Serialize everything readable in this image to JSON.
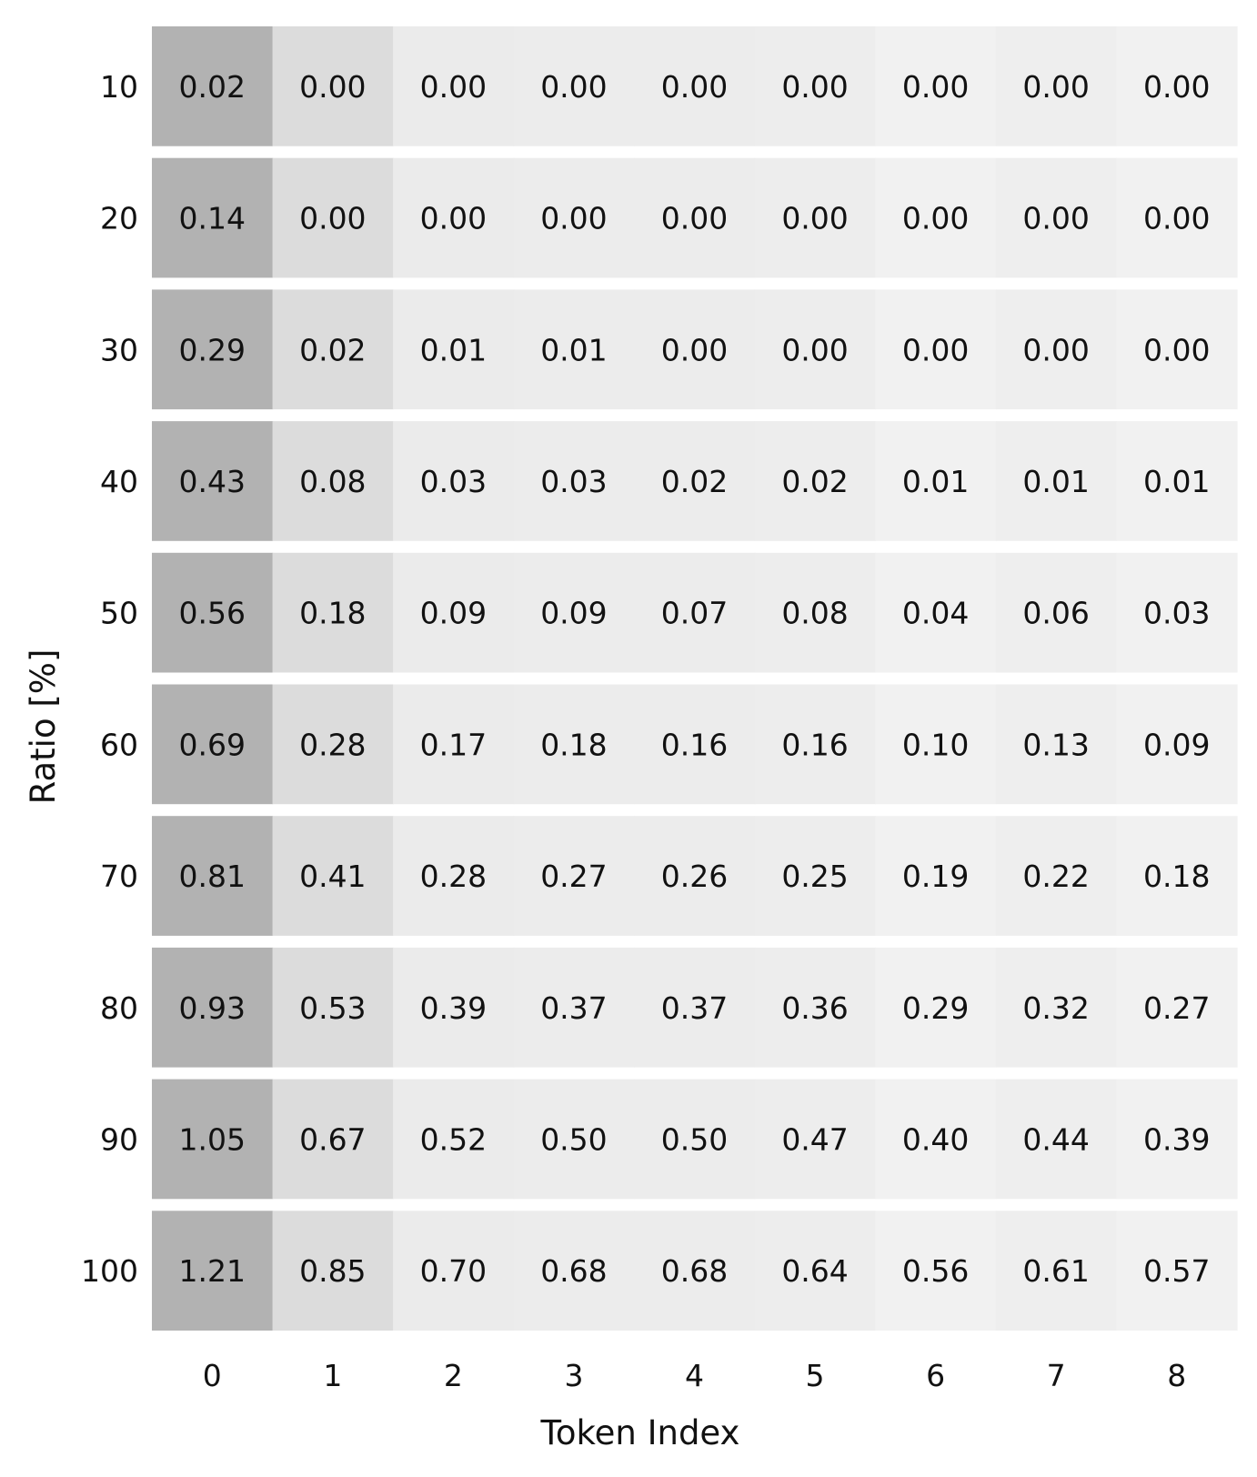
{
  "chart_data": {
    "type": "heatmap",
    "xlabel": "Token Index",
    "ylabel": "Ratio [%]",
    "x_categories": [
      "0",
      "1",
      "2",
      "3",
      "4",
      "5",
      "6",
      "7",
      "8"
    ],
    "y_categories": [
      "10",
      "20",
      "30",
      "40",
      "50",
      "60",
      "70",
      "80",
      "90",
      "100"
    ],
    "values": [
      [
        "0.02",
        "0.00",
        "0.00",
        "0.00",
        "0.00",
        "0.00",
        "0.00",
        "0.00",
        "0.00"
      ],
      [
        "0.14",
        "0.00",
        "0.00",
        "0.00",
        "0.00",
        "0.00",
        "0.00",
        "0.00",
        "0.00"
      ],
      [
        "0.29",
        "0.02",
        "0.01",
        "0.01",
        "0.00",
        "0.00",
        "0.00",
        "0.00",
        "0.00"
      ],
      [
        "0.43",
        "0.08",
        "0.03",
        "0.03",
        "0.02",
        "0.02",
        "0.01",
        "0.01",
        "0.01"
      ],
      [
        "0.56",
        "0.18",
        "0.09",
        "0.09",
        "0.07",
        "0.08",
        "0.04",
        "0.06",
        "0.03"
      ],
      [
        "0.69",
        "0.28",
        "0.17",
        "0.18",
        "0.16",
        "0.16",
        "0.10",
        "0.13",
        "0.09"
      ],
      [
        "0.81",
        "0.41",
        "0.28",
        "0.27",
        "0.26",
        "0.25",
        "0.19",
        "0.22",
        "0.18"
      ],
      [
        "0.93",
        "0.53",
        "0.39",
        "0.37",
        "0.37",
        "0.36",
        "0.29",
        "0.32",
        "0.27"
      ],
      [
        "1.05",
        "0.67",
        "0.52",
        "0.50",
        "0.50",
        "0.47",
        "0.40",
        "0.44",
        "0.39"
      ],
      [
        "1.21",
        "0.85",
        "0.70",
        "0.68",
        "0.68",
        "0.64",
        "0.56",
        "0.61",
        "0.57"
      ]
    ],
    "column_shades": [
      "#b2b2b2",
      "#dcdcdc",
      "#ebebeb",
      "#ececec",
      "#ececec",
      "#ededed",
      "#f1f1f1",
      "#eeeeee",
      "#f1f1f1"
    ],
    "row_separators": true,
    "colorbar": false,
    "grid": false
  }
}
